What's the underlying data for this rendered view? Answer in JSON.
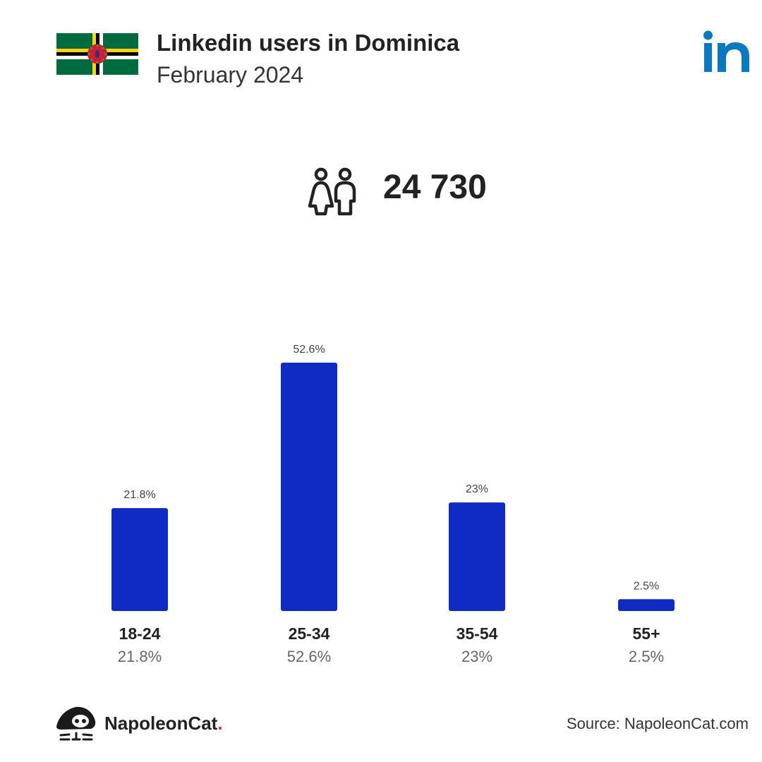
{
  "header": {
    "title": "Linkedin users in Dominica",
    "subtitle": "February 2024",
    "flag_icon": "dominica-flag-icon",
    "logo_icon": "linkedin-logo-icon"
  },
  "summary": {
    "icon": "users-icon",
    "total_users": "24 730"
  },
  "chart_data": {
    "type": "bar",
    "categories": [
      "18-24",
      "25-34",
      "35-54",
      "55+"
    ],
    "values": [
      21.8,
      52.6,
      23,
      2.5
    ],
    "value_labels": [
      "21.8%",
      "52.6%",
      "23%",
      "2.5%"
    ],
    "ylim": [
      0,
      52.6
    ],
    "grid": false,
    "legend": "none",
    "bar_color": "#0f2bc3"
  },
  "footer": {
    "brand_name": "NapoleonCat",
    "brand_dot": ".",
    "brand_icon": "napoleoncat-logo-icon",
    "source": "Source: NapoleonCat.com"
  },
  "colors": {
    "bar": "#0f2bc3",
    "linkedin": "#0a7ac0",
    "text": "#222222",
    "muted": "#666666",
    "brand_dot": "#e8223a"
  }
}
